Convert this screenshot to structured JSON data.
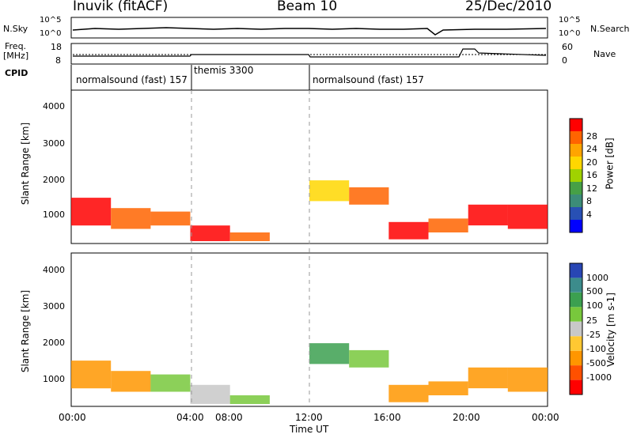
{
  "header": {
    "station": "Inuvik (fitACF)",
    "beam": "Beam 10",
    "date": "25/Dec/2010"
  },
  "status_panels": {
    "nsky_label": "N.Sky",
    "nsky_ticks": [
      "10^5",
      "10^0"
    ],
    "nsearch_label": "N.Search",
    "nsearch_ticks": [
      "10^5",
      "10^0"
    ],
    "freq_label_1": "Freq.",
    "freq_label_2": "[MHz]",
    "freq_ticks": [
      "18",
      "8"
    ],
    "nave_label": "Nave",
    "nave_ticks": [
      "60",
      "0"
    ],
    "cpid_label": "CPID",
    "cpid_segments": [
      {
        "label": "normalsound (fast) 157",
        "start_hour": 0,
        "end_hour": 6
      },
      {
        "label": "themis 3300",
        "start_hour": 6,
        "end_hour": 12
      },
      {
        "label": "normalsound (fast) 157",
        "start_hour": 12,
        "end_hour": 24
      }
    ]
  },
  "power_panel": {
    "ylabel": "Slant Range [km]",
    "yticks": [
      "4000",
      "3000",
      "2000",
      "1000"
    ],
    "colorbar_label": "Power [dB]",
    "colorbar_ticks": [
      "28",
      "24",
      "20",
      "16",
      "12",
      "8",
      "4"
    ],
    "colors": [
      "#0000ff",
      "#2850b4",
      "#3c8c78",
      "#46a046",
      "#a0d200",
      "#ffd700",
      "#ffa500",
      "#ff6400",
      "#ff0000"
    ]
  },
  "velocity_panel": {
    "ylabel": "Slant Range [km]",
    "yticks": [
      "4000",
      "3000",
      "2000",
      "1000"
    ],
    "colorbar_label": "Velocity [m s-1]",
    "colorbar_ticks": [
      "1000",
      "500",
      "100",
      "25",
      "-25",
      "-100",
      "-500",
      "-1000"
    ],
    "colors": [
      "#2846b4",
      "#3c8c8c",
      "#3ca050",
      "#78c83c",
      "#c8c8c8",
      "#ffc832",
      "#ff9600",
      "#ff5000",
      "#ff0000"
    ]
  },
  "x_axis": {
    "ticks": [
      "00:00",
      "04:00",
      "08:00",
      "12:00",
      "16:00",
      "20:00",
      "00:00"
    ],
    "label": "Time UT"
  },
  "chart_data": [
    {
      "type": "heatmap",
      "title": "Power [dB]",
      "xlabel": "Time UT",
      "ylabel": "Slant Range [km]",
      "xlim_hours": [
        0,
        24
      ],
      "ylim_km": [
        180,
        4600
      ],
      "colorscale": [
        4,
        8,
        12,
        16,
        20,
        24,
        28
      ],
      "regions": [
        {
          "t0": 0.0,
          "t1": 2.0,
          "r0": 700,
          "r1": 1500,
          "value": 28
        },
        {
          "t0": 2.0,
          "t1": 4.0,
          "r0": 600,
          "r1": 1200,
          "value": 26
        },
        {
          "t0": 4.0,
          "t1": 6.0,
          "r0": 700,
          "r1": 1100,
          "value": 24
        },
        {
          "t0": 6.0,
          "t1": 8.0,
          "r0": 250,
          "r1": 700,
          "value": 28
        },
        {
          "t0": 8.0,
          "t1": 10.0,
          "r0": 250,
          "r1": 500,
          "value": 24
        },
        {
          "t0": 12.0,
          "t1": 14.0,
          "r0": 1400,
          "r1": 2000,
          "value": 20
        },
        {
          "t0": 14.0,
          "t1": 16.0,
          "r0": 1300,
          "r1": 1800,
          "value": 24
        },
        {
          "t0": 16.0,
          "t1": 18.0,
          "r0": 300,
          "r1": 800,
          "value": 28
        },
        {
          "t0": 18.0,
          "t1": 20.0,
          "r0": 500,
          "r1": 900,
          "value": 26
        },
        {
          "t0": 20.0,
          "t1": 22.0,
          "r0": 700,
          "r1": 1300,
          "value": 28
        },
        {
          "t0": 22.0,
          "t1": 24.0,
          "r0": 600,
          "r1": 1300,
          "value": 28
        }
      ]
    },
    {
      "type": "heatmap",
      "title": "Velocity [m s-1]",
      "xlabel": "Time UT",
      "ylabel": "Slant Range [km]",
      "xlim_hours": [
        0,
        24
      ],
      "ylim_km": [
        180,
        4600
      ],
      "colorscale": [
        -1000,
        -500,
        -100,
        -25,
        25,
        100,
        500,
        1000
      ],
      "regions": [
        {
          "t0": 0.0,
          "t1": 2.0,
          "r0": 700,
          "r1": 1500,
          "value": -100
        },
        {
          "t0": 2.0,
          "t1": 4.0,
          "r0": 600,
          "r1": 1200,
          "value": -100
        },
        {
          "t0": 4.0,
          "t1": 6.0,
          "r0": 600,
          "r1": 1100,
          "value": 100
        },
        {
          "t0": 6.0,
          "t1": 8.0,
          "r0": 250,
          "r1": 800,
          "value": 0
        },
        {
          "t0": 8.0,
          "t1": 10.0,
          "r0": 250,
          "r1": 500,
          "value": 100
        },
        {
          "t0": 12.0,
          "t1": 14.0,
          "r0": 1400,
          "r1": 2000,
          "value": 500
        },
        {
          "t0": 14.0,
          "t1": 16.0,
          "r0": 1300,
          "r1": 1800,
          "value": 100
        },
        {
          "t0": 16.0,
          "t1": 18.0,
          "r0": 300,
          "r1": 800,
          "value": -100
        },
        {
          "t0": 18.0,
          "t1": 20.0,
          "r0": 500,
          "r1": 900,
          "value": -100
        },
        {
          "t0": 20.0,
          "t1": 22.0,
          "r0": 700,
          "r1": 1300,
          "value": -100
        },
        {
          "t0": 22.0,
          "t1": 24.0,
          "r0": 600,
          "r1": 1300,
          "value": -100
        }
      ]
    }
  ]
}
